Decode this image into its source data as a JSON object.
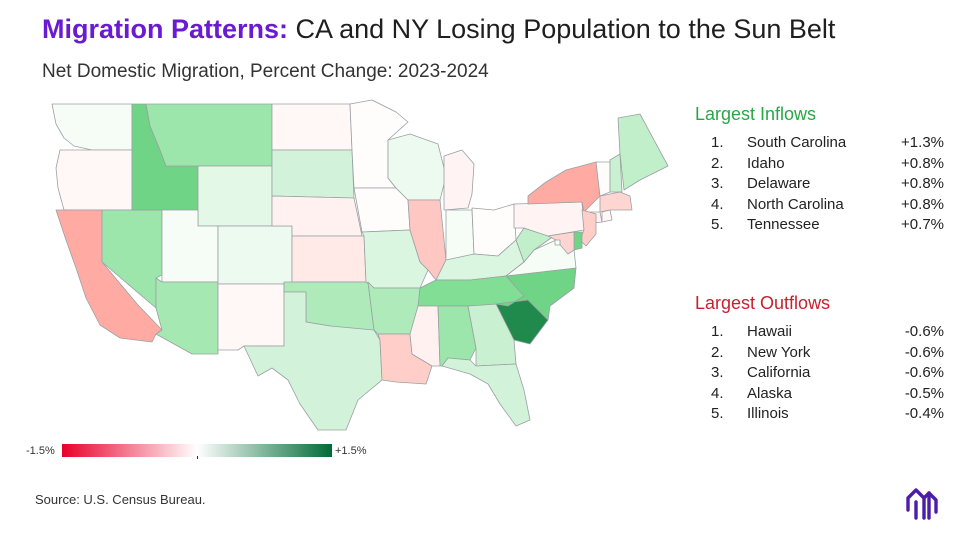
{
  "title": {
    "highlight": "Migration Patterns:",
    "rest": "CA and NY Losing Population to the Sun Belt"
  },
  "subtitle": "Net Domestic Migration, Percent Change: 2023-2024",
  "inflows": {
    "heading": "Largest Inflows",
    "items": [
      {
        "rank": "1.",
        "name": "South Carolina",
        "value": "+1.3%"
      },
      {
        "rank": "2.",
        "name": "Idaho",
        "value": "+0.8%"
      },
      {
        "rank": "3.",
        "name": "Delaware",
        "value": "+0.8%"
      },
      {
        "rank": "4.",
        "name": "North Carolina",
        "value": "+0.8%"
      },
      {
        "rank": "5.",
        "name": "Tennessee",
        "value": "+0.7%"
      }
    ]
  },
  "outflows": {
    "heading": "Largest Outflows",
    "items": [
      {
        "rank": "1.",
        "name": "Hawaii",
        "value": "-0.6%"
      },
      {
        "rank": "2.",
        "name": "New York",
        "value": "-0.6%"
      },
      {
        "rank": "3.",
        "name": "California",
        "value": "-0.6%"
      },
      {
        "rank": "4.",
        "name": "Alaska",
        "value": "-0.5%"
      },
      {
        "rank": "5.",
        "name": "Illinois",
        "value": "-0.4%"
      }
    ]
  },
  "scale": {
    "min_label": "-1.5%",
    "max_label": "+1.5%",
    "min": -1.5,
    "max": 1.5
  },
  "source": "Source: U.S. Census Bureau.",
  "colors": {
    "title_accent": "#6a1bd1",
    "inflow_heading": "#27a844",
    "outflow_heading": "#c8202f",
    "scale_low": "#e8002a",
    "scale_mid": "#ffffff",
    "scale_high": "#006b35",
    "state_border": "#9aa0a3",
    "logo": "#4b1da8"
  },
  "states": [
    {
      "code": "WA",
      "value": 0.05
    },
    {
      "code": "OR",
      "value": -0.05
    },
    {
      "code": "CA",
      "value": -0.6
    },
    {
      "code": "NV",
      "value": 0.55
    },
    {
      "code": "ID",
      "value": 0.8
    },
    {
      "code": "MT",
      "value": 0.55
    },
    {
      "code": "WY",
      "value": 0.15
    },
    {
      "code": "UT",
      "value": 0.05
    },
    {
      "code": "CO",
      "value": 0.1
    },
    {
      "code": "AZ",
      "value": 0.5
    },
    {
      "code": "NM",
      "value": -0.05
    },
    {
      "code": "ND",
      "value": -0.05
    },
    {
      "code": "SD",
      "value": 0.25
    },
    {
      "code": "NE",
      "value": -0.1
    },
    {
      "code": "KS",
      "value": -0.15
    },
    {
      "code": "OK",
      "value": 0.45
    },
    {
      "code": "TX",
      "value": 0.25
    },
    {
      "code": "MN",
      "value": -0.02
    },
    {
      "code": "IA",
      "value": -0.02
    },
    {
      "code": "MO",
      "value": 0.2
    },
    {
      "code": "AR",
      "value": 0.45
    },
    {
      "code": "LA",
      "value": -0.35
    },
    {
      "code": "WI",
      "value": 0.1
    },
    {
      "code": "IL",
      "value": -0.4
    },
    {
      "code": "MI",
      "value": -0.08
    },
    {
      "code": "IN",
      "value": 0.05
    },
    {
      "code": "OH",
      "value": -0.02
    },
    {
      "code": "KY",
      "value": 0.2
    },
    {
      "code": "TN",
      "value": 0.7
    },
    {
      "code": "MS",
      "value": -0.1
    },
    {
      "code": "AL",
      "value": 0.55
    },
    {
      "code": "GA",
      "value": 0.3
    },
    {
      "code": "FL",
      "value": 0.25
    },
    {
      "code": "SC",
      "value": 1.3
    },
    {
      "code": "NC",
      "value": 0.8
    },
    {
      "code": "VA",
      "value": 0.05
    },
    {
      "code": "WV",
      "value": 0.35
    },
    {
      "code": "PA",
      "value": -0.08
    },
    {
      "code": "NY",
      "value": -0.6
    },
    {
      "code": "VT",
      "value": -0.02
    },
    {
      "code": "NH",
      "value": 0.3
    },
    {
      "code": "ME",
      "value": 0.35
    },
    {
      "code": "MA",
      "value": -0.3
    },
    {
      "code": "CT",
      "value": -0.1
    },
    {
      "code": "RI",
      "value": -0.05
    },
    {
      "code": "NJ",
      "value": -0.35
    },
    {
      "code": "DE",
      "value": 0.8
    },
    {
      "code": "MD",
      "value": -0.3
    },
    {
      "code": "DC",
      "value": 0.05
    }
  ]
}
